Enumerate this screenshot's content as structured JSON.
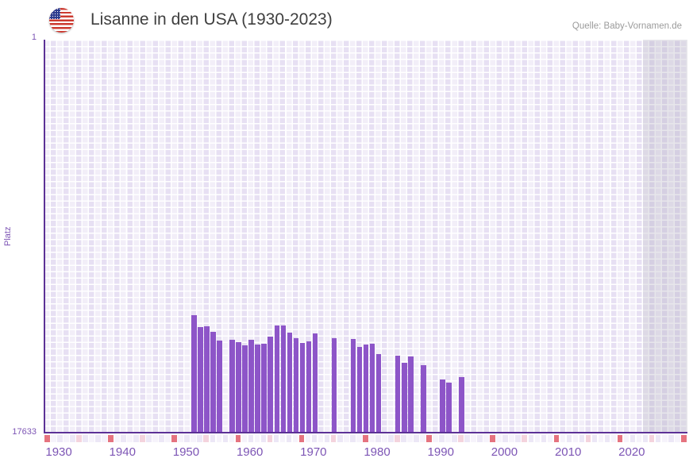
{
  "header": {
    "title": "Lisanne in den USA (1930-2023)",
    "source": "Quelle: Baby-Vornamen.de",
    "flag": "us-flag-icon"
  },
  "y_axis": {
    "label": "Platz",
    "top_tick": "1",
    "bottom_tick": "17633"
  },
  "chart_data": {
    "type": "bar",
    "title": "Lisanne in den USA (1930-2023)",
    "xlabel": "",
    "ylabel": "Platz",
    "y_range": [
      1,
      17633
    ],
    "y_inverted": true,
    "grid": true,
    "legend": "none",
    "x_tick_years": [
      1930,
      1940,
      1950,
      1960,
      1970,
      1980,
      1990,
      2000,
      2010,
      2020
    ],
    "x_grid_start_year": 1928,
    "x_grid_end_year": 2028,
    "no_data_zone_years": [
      2022,
      2028
    ],
    "timeline_strip": {
      "red_years_every10_from": 1928,
      "pink_years_every10_from": 1933
    },
    "points": [
      {
        "year": 1951,
        "rank": 12400
      },
      {
        "year": 1952,
        "rank": 12910
      },
      {
        "year": 1953,
        "rank": 12870
      },
      {
        "year": 1954,
        "rank": 13120
      },
      {
        "year": 1955,
        "rank": 13520
      },
      {
        "year": 1957,
        "rank": 13480
      },
      {
        "year": 1958,
        "rank": 13590
      },
      {
        "year": 1959,
        "rank": 13760
      },
      {
        "year": 1960,
        "rank": 13480
      },
      {
        "year": 1961,
        "rank": 13690
      },
      {
        "year": 1962,
        "rank": 13660
      },
      {
        "year": 1963,
        "rank": 13340
      },
      {
        "year": 1964,
        "rank": 12840
      },
      {
        "year": 1965,
        "rank": 12840
      },
      {
        "year": 1966,
        "rank": 13160
      },
      {
        "year": 1967,
        "rank": 13410
      },
      {
        "year": 1968,
        "rank": 13620
      },
      {
        "year": 1969,
        "rank": 13550
      },
      {
        "year": 1970,
        "rank": 13190
      },
      {
        "year": 1973,
        "rank": 13410
      },
      {
        "year": 1976,
        "rank": 13440
      },
      {
        "year": 1977,
        "rank": 13800
      },
      {
        "year": 1978,
        "rank": 13690
      },
      {
        "year": 1979,
        "rank": 13660
      },
      {
        "year": 1980,
        "rank": 14120
      },
      {
        "year": 1983,
        "rank": 14190
      },
      {
        "year": 1984,
        "rank": 14510
      },
      {
        "year": 1985,
        "rank": 14260
      },
      {
        "year": 1987,
        "rank": 14620
      },
      {
        "year": 1990,
        "rank": 15260
      },
      {
        "year": 1991,
        "rank": 15410
      },
      {
        "year": 1993,
        "rank": 15160
      }
    ]
  },
  "colors": {
    "bar": "#8d55c8",
    "axis": "#5c3196",
    "tick_label": "#7d55b5",
    "grid_cell": "#e7e0f3",
    "strip_red": "#e5737f",
    "strip_pink": "#f4d3dd",
    "strip_cell_a": "#ece7f6",
    "strip_cell_b": "#f6f3fb",
    "no_data_overlay": "#aaa7b8",
    "title_text": "#3f3f3f",
    "source_text": "#9b9b9b"
  }
}
